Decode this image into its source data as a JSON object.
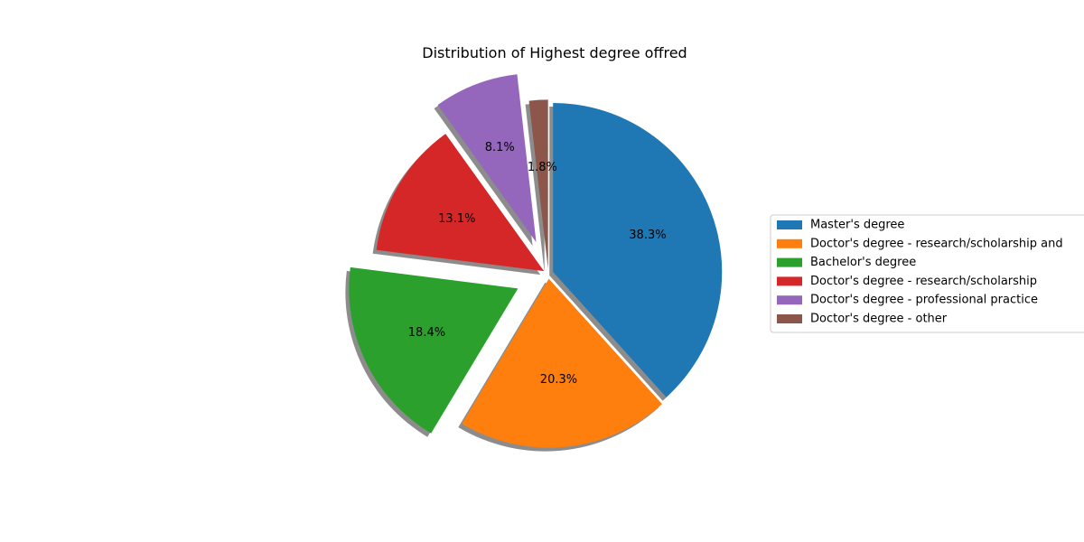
{
  "chart_data": {
    "type": "pie",
    "title": "Distribution of Highest degree offred",
    "legend_position": "right",
    "shadow": true,
    "slices": [
      {
        "label": "Master's degree",
        "value": 38.3,
        "pct_label": "38.3%",
        "color": "#1f77b4",
        "exploded": false
      },
      {
        "label": "Doctor's degree - research/scholarship and",
        "value": 20.3,
        "pct_label": "20.3%",
        "color": "#ff7f0e",
        "exploded": false
      },
      {
        "label": "Bachelor's degree",
        "value": 18.4,
        "pct_label": "18.4%",
        "color": "#2ca02c",
        "exploded": true
      },
      {
        "label": "Doctor's degree - research/scholarship",
        "value": 13.1,
        "pct_label": "13.1%",
        "color": "#d62728",
        "exploded": false
      },
      {
        "label": "Doctor's degree -  professional practice",
        "value": 8.1,
        "pct_label": "8.1%",
        "color": "#9467bd",
        "exploded": true
      },
      {
        "label": "Doctor's degree - other",
        "value": 1.8,
        "pct_label": "1.8%",
        "color": "#8c564b",
        "exploded": false
      }
    ]
  }
}
